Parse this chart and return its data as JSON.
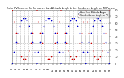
{
  "title": "Solar PV/Inverter Performance Sun Altitude Angle & Sun Incidence Angle on PV Panels",
  "legend_labels": [
    "Hour Sun Altitude Angle",
    "Sun Incidence Angle on PV"
  ],
  "legend_colors": [
    "#0000cc",
    "#cc0000"
  ],
  "background_color": "#ffffff",
  "plot_bg_color": "#ffffff",
  "grid_color": "#aaaaaa",
  "title_color": "#000000",
  "tick_color": "#000000",
  "ymin": 0,
  "ymax": 80,
  "yticks": [
    0,
    10,
    20,
    30,
    40,
    50,
    60,
    70,
    80
  ],
  "num_days": 4,
  "points_per_day": 14,
  "blue_peak": 68,
  "red_peak": 75,
  "red_min": 5
}
